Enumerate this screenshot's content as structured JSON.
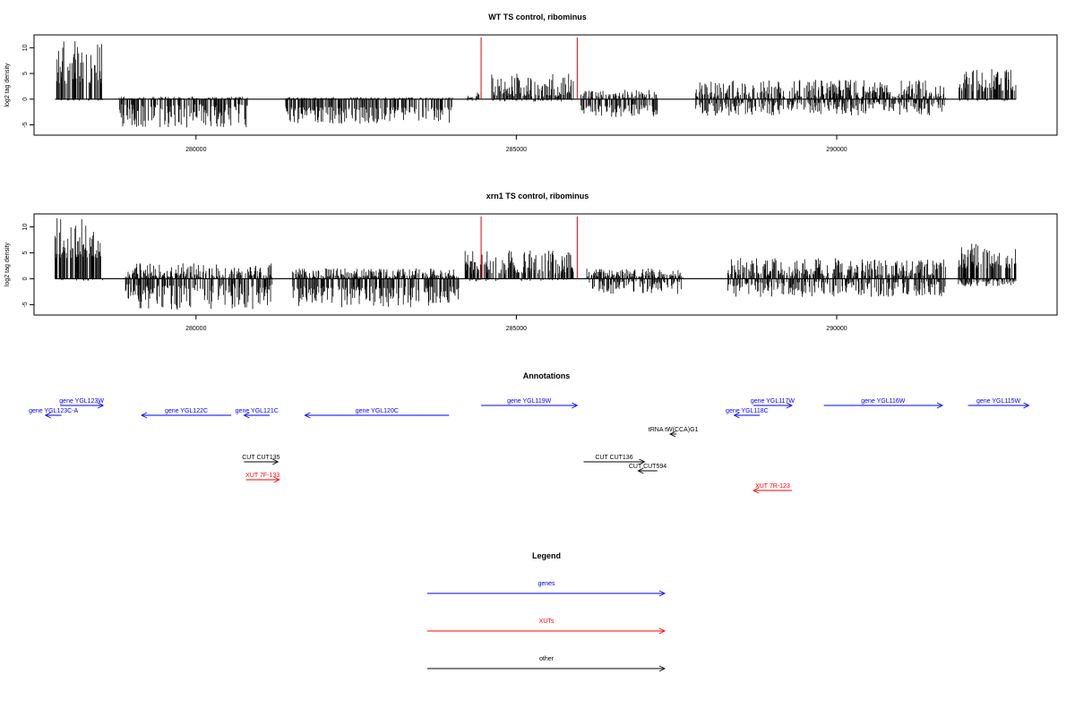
{
  "chart_data": [
    {
      "type": "bar",
      "title": "WT TS control, ribominus",
      "ylabel": "log2 tag density",
      "xlabel": "",
      "xlim": [
        277500,
        293300
      ],
      "ylim": [
        -7,
        12.5
      ],
      "x_ticks": [
        280000,
        285000,
        290000
      ],
      "y_ticks": [
        -5,
        0,
        5,
        10
      ],
      "grid": false,
      "markers": [
        {
          "x": 284450,
          "color": "#e00000"
        },
        {
          "x": 285950,
          "color": "#e00000"
        }
      ],
      "segments": [
        {
          "x": [
            277800,
            278550
          ],
          "pos": [
            3,
            11.5
          ],
          "neg": [
            -0.2,
            -0.3
          ]
        },
        {
          "x": [
            278800,
            280800
          ],
          "pos": [
            0,
            0.5
          ],
          "neg": [
            -1,
            -5.5
          ]
        },
        {
          "x": [
            281400,
            284000
          ],
          "pos": [
            0,
            0.4
          ],
          "neg": [
            -1.5,
            -4.8
          ]
        },
        {
          "x": [
            284200,
            284450
          ],
          "pos": [
            0,
            1.5
          ],
          "neg": [
            -0.2,
            -0.5
          ]
        },
        {
          "x": [
            284600,
            285900
          ],
          "pos": [
            0.5,
            5
          ],
          "neg": [
            -0.2,
            -0.5
          ]
        },
        {
          "x": [
            286000,
            287200
          ],
          "pos": [
            0,
            2
          ],
          "neg": [
            -1,
            -3.5
          ]
        },
        {
          "x": [
            287800,
            291700
          ],
          "pos": [
            0.3,
            3.8
          ],
          "neg": [
            -0.5,
            -3.2
          ]
        },
        {
          "x": [
            291900,
            292800
          ],
          "pos": [
            1.5,
            6
          ],
          "neg": [
            -0.2,
            -0.4
          ]
        }
      ]
    },
    {
      "type": "bar",
      "title": "xrn1 TS control, ribominus",
      "ylabel": "log2 tag density",
      "xlabel": "",
      "xlim": [
        277500,
        293300
      ],
      "ylim": [
        -7,
        12.5
      ],
      "x_ticks": [
        280000,
        285000,
        290000
      ],
      "y_ticks": [
        -5,
        0,
        5,
        10
      ],
      "grid": false,
      "markers": [
        {
          "x": 284450,
          "color": "#e00000"
        },
        {
          "x": 285950,
          "color": "#e00000"
        }
      ],
      "segments": [
        {
          "x": [
            277800,
            278550
          ],
          "pos": [
            4,
            11.8
          ],
          "neg": [
            -0.2,
            -0.4
          ]
        },
        {
          "x": [
            278900,
            281200
          ],
          "pos": [
            0.3,
            3
          ],
          "neg": [
            -1,
            -6
          ]
        },
        {
          "x": [
            281500,
            284100
          ],
          "pos": [
            0.3,
            2
          ],
          "neg": [
            -1.5,
            -5.5
          ]
        },
        {
          "x": [
            284200,
            285900
          ],
          "pos": [
            1,
            5.5
          ],
          "neg": [
            -0.2,
            -0.5
          ]
        },
        {
          "x": [
            286100,
            287600
          ],
          "pos": [
            0.3,
            2
          ],
          "neg": [
            -0.5,
            -3
          ]
        },
        {
          "x": [
            288300,
            291700
          ],
          "pos": [
            0.5,
            4
          ],
          "neg": [
            -0.5,
            -3.5
          ]
        },
        {
          "x": [
            291900,
            292800
          ],
          "pos": [
            2,
            6.8
          ],
          "neg": [
            -0.3,
            -1.5
          ]
        }
      ]
    }
  ],
  "annotations": {
    "title": "Annotations",
    "features": [
      {
        "label": "gene YGL123W",
        "start": 277880,
        "end": 278550,
        "row": 0,
        "type": "gene"
      },
      {
        "label": "gene YGL123C-A",
        "start": 277650,
        "end": 277900,
        "row": 1,
        "type": "gene"
      },
      {
        "label": "gene YGL122C",
        "start": 279150,
        "end": 280550,
        "row": 1,
        "type": "gene"
      },
      {
        "label": "gene YGL121C",
        "start": 280750,
        "end": 281150,
        "row": 1,
        "type": "gene"
      },
      {
        "label": "gene YGL120C",
        "start": 281700,
        "end": 283950,
        "row": 1,
        "type": "gene"
      },
      {
        "label": "gene YGL119W",
        "start": 284450,
        "end": 285950,
        "row": 0,
        "type": "gene"
      },
      {
        "label": "gene YGL117W",
        "start": 288700,
        "end": 289300,
        "row": 0,
        "type": "gene"
      },
      {
        "label": "gene YGL118C",
        "start": 288400,
        "end": 288800,
        "row": 1,
        "type": "gene"
      },
      {
        "label": "gene YGL116W",
        "start": 289800,
        "end": 291650,
        "row": 0,
        "type": "gene"
      },
      {
        "label": "gene YGL115W",
        "start": 292050,
        "end": 293000,
        "row": 0,
        "type": "gene"
      },
      {
        "label": "tRNA tW(CCA)G1",
        "start": 287400,
        "end": 287500,
        "row": 2,
        "type": "other"
      },
      {
        "label": "CUT CUT135",
        "start": 280750,
        "end": 281280,
        "row": 3,
        "type": "other"
      },
      {
        "label": "CUT CUT136",
        "start": 286050,
        "end": 287000,
        "row": 3,
        "type": "other"
      },
      {
        "label": "CUT CUT594",
        "start": 286900,
        "end": 287200,
        "row": 4,
        "type": "other"
      },
      {
        "label": "XUT 7F-133",
        "start": 280780,
        "end": 281300,
        "row": 5,
        "type": "xut"
      },
      {
        "label": "XUT 7R-123",
        "start": 288700,
        "end": 289300,
        "row": 6,
        "type": "xut"
      }
    ]
  },
  "legend": {
    "title": "Legend",
    "items": [
      {
        "label": "genes",
        "color": "#0000ff"
      },
      {
        "label": "XUTs",
        "color": "#ff0000"
      },
      {
        "label": "other",
        "color": "#000000"
      }
    ]
  },
  "colors": {
    "gene": "#0000ff",
    "xut": "#ff0000",
    "other": "#000000",
    "marker": "#e00000",
    "axis": "#000000"
  }
}
